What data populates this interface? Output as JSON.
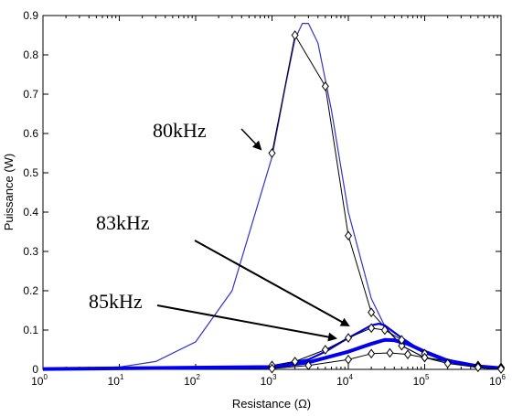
{
  "chart_data": {
    "type": "line",
    "x_scale": "log",
    "xlim": [
      1,
      1000000
    ],
    "ylim": [
      0,
      0.9
    ],
    "xlabel": "Resistance (Ω)",
    "ylabel": "Puissance (W)",
    "x_tick_bases": [
      "10",
      "10",
      "10",
      "10",
      "10",
      "10",
      "10"
    ],
    "x_tick_exps": [
      "0",
      "1",
      "2",
      "3",
      "4",
      "5",
      "6"
    ],
    "y_ticks": [
      "0",
      "0.1",
      "0.2",
      "0.3",
      "0.4",
      "0.5",
      "0.6",
      "0.7",
      "0.8",
      "0.9"
    ],
    "annotations": [
      "80kHz",
      "83kHz",
      "85kHz"
    ],
    "series": [
      {
        "color": "#3333cc",
        "marker": "none",
        "width": 1.2,
        "points": [
          [
            1,
            0.001
          ],
          [
            10,
            0.006
          ],
          [
            30,
            0.02
          ],
          [
            100,
            0.07
          ],
          [
            300,
            0.2
          ],
          [
            1000,
            0.54
          ],
          [
            1500,
            0.72
          ],
          [
            2000,
            0.84
          ],
          [
            2500,
            0.88
          ],
          [
            3000,
            0.88
          ],
          [
            4000,
            0.83
          ],
          [
            6000,
            0.66
          ],
          [
            10000,
            0.4
          ],
          [
            20000,
            0.18
          ],
          [
            30000,
            0.11
          ],
          [
            50000,
            0.06
          ],
          [
            100000,
            0.03
          ],
          [
            300000,
            0.012
          ],
          [
            1000000,
            0.003
          ]
        ]
      },
      {
        "color": "#000000",
        "marker": "diamond",
        "width": 1,
        "points": [
          [
            1000,
            0.55
          ],
          [
            2000,
            0.85
          ],
          [
            5000,
            0.72
          ],
          [
            10000,
            0.34
          ],
          [
            20000,
            0.145
          ],
          [
            50000,
            0.06
          ],
          [
            100000,
            0.03
          ],
          [
            500000,
            0.01
          ],
          [
            1000000,
            0.005
          ]
        ]
      },
      {
        "color": "#0000ee",
        "marker": "none",
        "width": 2.2,
        "points": [
          [
            1,
            0.001
          ],
          [
            100,
            0.002
          ],
          [
            1000,
            0.008
          ],
          [
            3000,
            0.025
          ],
          [
            5000,
            0.045
          ],
          [
            10000,
            0.08
          ],
          [
            20000,
            0.112
          ],
          [
            25000,
            0.116
          ],
          [
            30000,
            0.112
          ],
          [
            50000,
            0.08
          ],
          [
            100000,
            0.042
          ],
          [
            200000,
            0.02
          ],
          [
            500000,
            0.006
          ],
          [
            1000000,
            0.002
          ]
        ]
      },
      {
        "color": "#000000",
        "marker": "diamond",
        "width": 1,
        "points": [
          [
            1000,
            0.01
          ],
          [
            2000,
            0.02
          ],
          [
            5000,
            0.05
          ],
          [
            10000,
            0.08
          ],
          [
            20000,
            0.105
          ],
          [
            30000,
            0.1
          ],
          [
            50000,
            0.075
          ],
          [
            100000,
            0.04
          ],
          [
            500000,
            0.008
          ],
          [
            1000000,
            0.003
          ]
        ]
      },
      {
        "color": "#0000ee",
        "marker": "none",
        "width": 4,
        "points": [
          [
            1,
            0.001
          ],
          [
            1000,
            0.006
          ],
          [
            3000,
            0.018
          ],
          [
            10000,
            0.045
          ],
          [
            20000,
            0.065
          ],
          [
            30000,
            0.075
          ],
          [
            40000,
            0.074
          ],
          [
            60000,
            0.065
          ],
          [
            100000,
            0.045
          ],
          [
            200000,
            0.022
          ],
          [
            500000,
            0.008
          ],
          [
            1000000,
            0.003
          ]
        ]
      },
      {
        "color": "#000000",
        "marker": "diamond",
        "width": 1,
        "points": [
          [
            1000,
            0.002
          ],
          [
            3000,
            0.01
          ],
          [
            10000,
            0.025
          ],
          [
            20000,
            0.04
          ],
          [
            35000,
            0.042
          ],
          [
            60000,
            0.038
          ],
          [
            100000,
            0.03
          ],
          [
            200000,
            0.015
          ],
          [
            500000,
            0.005
          ],
          [
            1000000,
            0.001
          ]
        ]
      }
    ]
  }
}
